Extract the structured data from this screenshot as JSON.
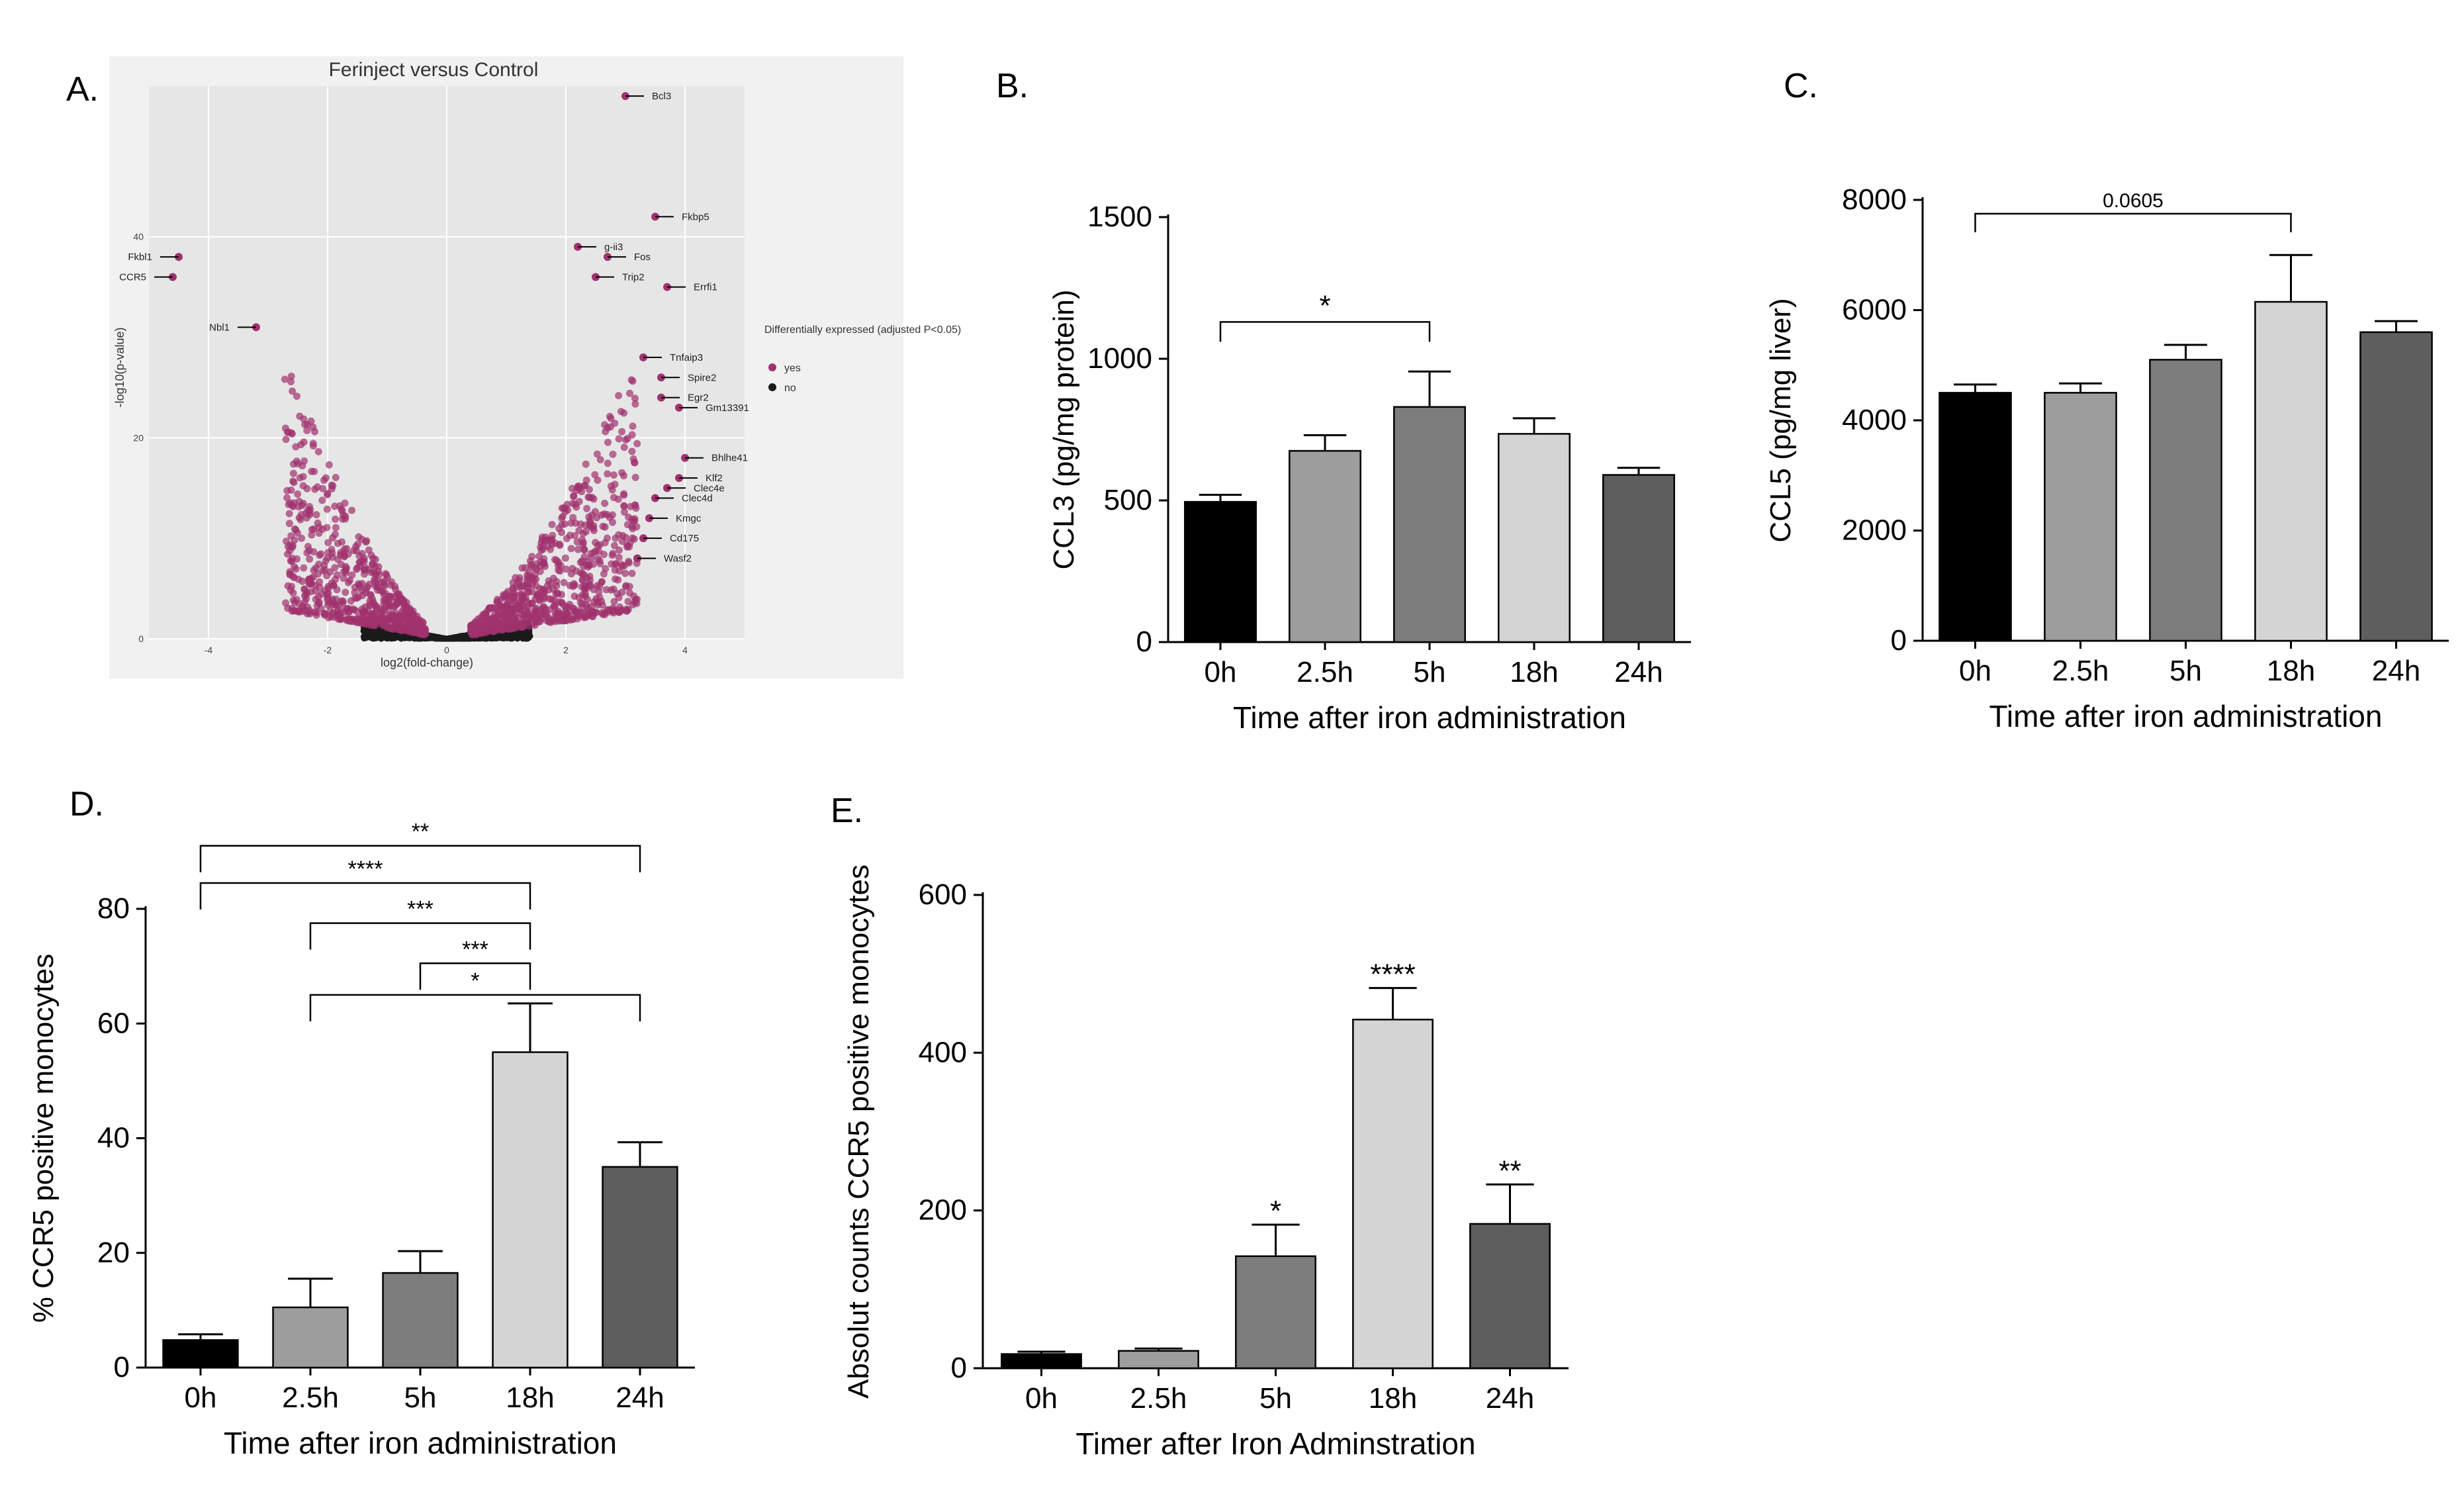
{
  "figure": {
    "panel_labels": [
      "A.",
      "B.",
      "C.",
      "D.",
      "E."
    ]
  },
  "chart_data": [
    {
      "panel": "A.",
      "type": "scatter",
      "title": "Ferinject versus Control",
      "xlabel": "log2(fold-change)",
      "ylabel": "-log10(p-value)",
      "xlim": [
        -5,
        5
      ],
      "ylim": [
        0,
        55
      ],
      "xticks": [
        "-4",
        "-2",
        "0",
        "2",
        "4"
      ],
      "yticks": [
        "0",
        "20",
        "40"
      ],
      "legend_title": "Differentially expressed (adjusted P<0.05)",
      "legend": [
        {
          "label": "yes",
          "color": "#a0326e"
        },
        {
          "label": "no",
          "color": "#1a1a1a"
        }
      ],
      "labeled_genes": [
        {
          "label": "Bcl3",
          "x": 3.0,
          "y": 54
        },
        {
          "label": "Fkbp5",
          "x": 3.5,
          "y": 42
        },
        {
          "label": "g-ii3",
          "x": 2.2,
          "y": 39
        },
        {
          "label": "Fos",
          "x": 2.7,
          "y": 38
        },
        {
          "label": "Errfi1",
          "x": 3.7,
          "y": 35
        },
        {
          "label": "Trip2",
          "x": 2.5,
          "y": 36
        },
        {
          "label": "Tnfaip3",
          "x": 3.3,
          "y": 28
        },
        {
          "label": "Spire2",
          "x": 3.6,
          "y": 26
        },
        {
          "label": "Egr2",
          "x": 3.6,
          "y": 24
        },
        {
          "label": "Gm13391",
          "x": 3.9,
          "y": 23
        },
        {
          "label": "Bhlhe41",
          "x": 4.0,
          "y": 18
        },
        {
          "label": "Klf2",
          "x": 3.9,
          "y": 16
        },
        {
          "label": "Clec4e",
          "x": 3.7,
          "y": 15
        },
        {
          "label": "Clec4d",
          "x": 3.5,
          "y": 14
        },
        {
          "label": "Kmgc",
          "x": 3.4,
          "y": 12
        },
        {
          "label": "Cd175",
          "x": 3.3,
          "y": 10
        },
        {
          "label": "Wasf2",
          "x": 3.2,
          "y": 8
        },
        {
          "label": "Fkbl1",
          "x": -4.5,
          "y": 38
        },
        {
          "label": "CCR5",
          "x": -4.6,
          "y": 36
        },
        {
          "label": "Nbl1",
          "x": -3.2,
          "y": 31
        }
      ]
    },
    {
      "panel": "B.",
      "type": "bar",
      "categories": [
        "0h",
        "2.5h",
        "5h",
        "18h",
        "24h"
      ],
      "values": [
        495,
        675,
        830,
        735,
        590
      ],
      "errors": [
        25,
        55,
        125,
        55,
        25
      ],
      "colors": [
        "#000000",
        "#9d9d9d",
        "#7d7d7d",
        "#d4d4d4",
        "#5e5e5e"
      ],
      "xlabel": "Time after iron administration",
      "ylabel": "CCL3 (pg/mg protein)",
      "ylim": [
        0,
        1500
      ],
      "yticks": [
        "0",
        "500",
        "1000",
        "1500"
      ],
      "annotations": [
        {
          "from": 0,
          "to": 2,
          "text": "*",
          "y": 1130
        }
      ]
    },
    {
      "panel": "C.",
      "type": "bar",
      "categories": [
        "0h",
        "2.5h",
        "5h",
        "18h",
        "24h"
      ],
      "values": [
        4500,
        4500,
        5100,
        6150,
        5600
      ],
      "errors": [
        150,
        170,
        270,
        850,
        200
      ],
      "colors": [
        "#000000",
        "#9d9d9d",
        "#7d7d7d",
        "#d4d4d4",
        "#5e5e5e"
      ],
      "xlabel": "Time after iron administration",
      "ylabel": "CCL5 (pg/mg liver)",
      "ylim": [
        0,
        8000
      ],
      "yticks": [
        "0",
        "2000",
        "4000",
        "6000",
        "8000"
      ],
      "annotations": [
        {
          "from": 0,
          "to": 3,
          "text": "0.0605",
          "y": 7750
        }
      ]
    },
    {
      "panel": "D.",
      "type": "bar",
      "categories": [
        "0h",
        "2.5h",
        "5h",
        "18h",
        "24h"
      ],
      "values": [
        4.8,
        10.5,
        16.5,
        55,
        35
      ],
      "errors": [
        1.0,
        5.0,
        3.8,
        8.5,
        4.3
      ],
      "colors": [
        "#000000",
        "#9d9d9d",
        "#7d7d7d",
        "#d4d4d4",
        "#5e5e5e"
      ],
      "xlabel": "Time after iron administration",
      "ylabel": "% CCR5 positive monocytes",
      "ylim": [
        0,
        80
      ],
      "yticks": [
        "0",
        "20",
        "40",
        "60",
        "80"
      ],
      "annotations": [
        {
          "from": 0,
          "to": 4,
          "text": "**",
          "y": 91
        },
        {
          "from": 0,
          "to": 3,
          "text": "****",
          "y": 84.5
        },
        {
          "from": 1,
          "to": 3,
          "text": "***",
          "y": 77.5
        },
        {
          "from": 2,
          "to": 3,
          "text": "***",
          "y": 70.5
        },
        {
          "from": 1,
          "to": 4,
          "text": "*",
          "y": 65
        }
      ]
    },
    {
      "panel": "E.",
      "type": "bar",
      "categories": [
        "0h",
        "2.5h",
        "5h",
        "18h",
        "24h"
      ],
      "values": [
        18,
        22,
        142,
        442,
        183
      ],
      "errors": [
        3,
        3,
        40,
        40,
        50
      ],
      "colors": [
        "#000000",
        "#9d9d9d",
        "#7d7d7d",
        "#d4d4d4",
        "#5e5e5e"
      ],
      "xlabel": "Timer after Iron Adminstration",
      "ylabel": "Absolut counts CCR5 positive monocytes",
      "ylim": [
        0,
        600
      ],
      "yticks": [
        "0",
        "200",
        "400",
        "600"
      ],
      "bar_labels": [
        "",
        "",
        "*",
        "****",
        "**"
      ]
    }
  ]
}
